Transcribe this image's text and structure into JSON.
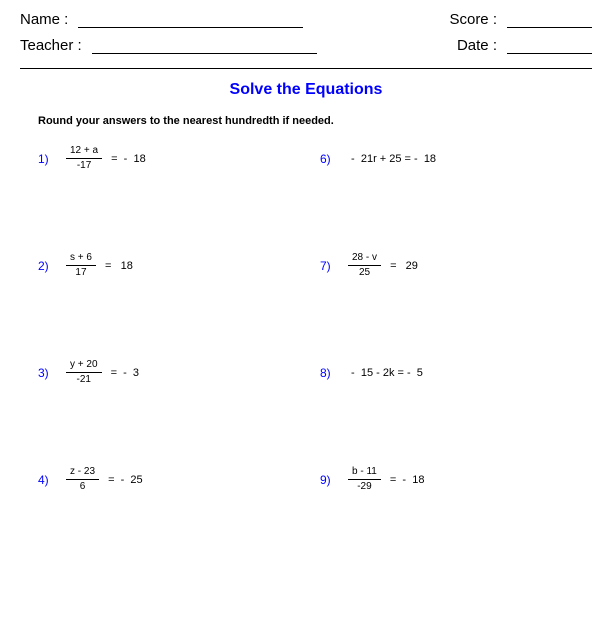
{
  "colors": {
    "title": "#0000ff",
    "pnum": "#0000ff",
    "text": "#000000"
  },
  "header": {
    "name_label": "Name :",
    "teacher_label": "Teacher :",
    "score_label": "Score :",
    "date_label": "Date :"
  },
  "title": "Solve the Equations",
  "subtitle": "Round your answers to the nearest hundredth if needed.",
  "problems": {
    "left": [
      {
        "n": "1)",
        "type": "frac",
        "num": "12 + a",
        "den": "-17",
        "rest": " =  -  18"
      },
      {
        "n": "2)",
        "type": "frac",
        "num": "s + 6",
        "den": "17",
        "rest": " =   18"
      },
      {
        "n": "3)",
        "type": "frac",
        "num": "y + 20",
        "den": "-21",
        "rest": " =  -  3"
      },
      {
        "n": "4)",
        "type": "frac",
        "num": "z - 23",
        "den": "6",
        "rest": " =  -  25"
      }
    ],
    "right": [
      {
        "n": "6)",
        "type": "plain",
        "expr": " -  21r + 25 = -  18"
      },
      {
        "n": "7)",
        "type": "frac",
        "num": "28 - v",
        "den": "25",
        "rest": " =   29"
      },
      {
        "n": "8)",
        "type": "plain",
        "expr": " -  15 - 2k = -  5"
      },
      {
        "n": "9)",
        "type": "frac",
        "num": "b - 11",
        "den": "-29",
        "rest": " =  -  18"
      }
    ]
  }
}
